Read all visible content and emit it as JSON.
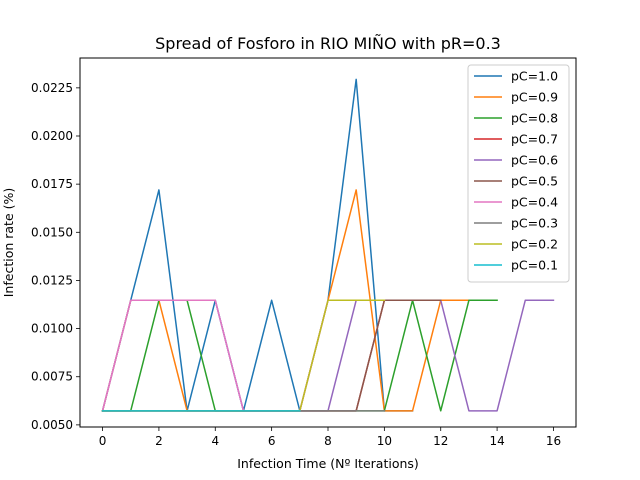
{
  "chart_data": {
    "type": "line",
    "title": "Spread of Fosforo in RIO MIÑO with pR=0.3",
    "xlabel": "Infection Time (Nº Iterations)",
    "ylabel": "Infection rate (%)",
    "xlim": [
      -0.8,
      16.8
    ],
    "ylim": [
      0.00489,
      0.02405
    ],
    "xticks": [
      0,
      2,
      4,
      6,
      8,
      10,
      12,
      14,
      16
    ],
    "xtick_labels": [
      "0",
      "2",
      "4",
      "6",
      "8",
      "10",
      "12",
      "14",
      "16"
    ],
    "yticks": [
      0.005,
      0.0075,
      0.01,
      0.0125,
      0.015,
      0.0175,
      0.02,
      0.0225
    ],
    "ytick_labels": [
      "0.0050",
      "0.0075",
      "0.0100",
      "0.0125",
      "0.0150",
      "0.0175",
      "0.0200",
      "0.0225"
    ],
    "grid": false,
    "legend_position": "top-right",
    "series": [
      {
        "name": "pC=1.0",
        "color": "#1f77b4",
        "x": [
          0,
          1,
          2,
          3,
          4,
          5,
          6,
          7,
          8,
          9,
          10,
          11
        ],
        "y": [
          0.00573,
          0.01147,
          0.0172,
          0.00573,
          0.01147,
          0.00573,
          0.01147,
          0.00573,
          0.01147,
          0.02294,
          0.00573,
          0.00573
        ]
      },
      {
        "name": "pC=0.9",
        "color": "#ff7f0e",
        "x": [
          0,
          1,
          2,
          3,
          4,
          5,
          6,
          7,
          8,
          9,
          10,
          11,
          12,
          13
        ],
        "y": [
          0.00573,
          0.01147,
          0.01147,
          0.00573,
          0.00573,
          0.00573,
          0.00573,
          0.00573,
          0.01147,
          0.0172,
          0.00573,
          0.00573,
          0.01147,
          0.01147
        ]
      },
      {
        "name": "pC=0.8",
        "color": "#2ca02c",
        "x": [
          0,
          1,
          2,
          3,
          4,
          5,
          6,
          7,
          8,
          9,
          10,
          11,
          12,
          13,
          14
        ],
        "y": [
          0.00573,
          0.00573,
          0.01147,
          0.01147,
          0.00573,
          0.00573,
          0.00573,
          0.00573,
          0.00573,
          0.00573,
          0.00573,
          0.01147,
          0.00573,
          0.01147,
          0.01147
        ]
      },
      {
        "name": "pC=0.7",
        "color": "#d62728",
        "x": [
          0,
          1,
          2,
          3,
          4,
          5,
          6,
          7,
          8,
          9,
          10,
          11,
          12
        ],
        "y": [
          0.00573,
          0.00573,
          0.00573,
          0.00573,
          0.00573,
          0.00573,
          0.00573,
          0.00573,
          0.00573,
          0.00573,
          0.01147,
          0.01147,
          0.01147
        ]
      },
      {
        "name": "pC=0.6",
        "color": "#9467bd",
        "x": [
          0,
          1,
          2,
          3,
          4,
          5,
          6,
          7,
          8,
          9,
          10,
          11,
          12,
          13,
          14,
          15,
          16
        ],
        "y": [
          0.00573,
          0.01147,
          0.01147,
          0.01147,
          0.01147,
          0.00573,
          0.00573,
          0.00573,
          0.00573,
          0.01147,
          0.01147,
          0.01147,
          0.01147,
          0.00573,
          0.00573,
          0.01147,
          0.01147
        ]
      },
      {
        "name": "pC=0.5",
        "color": "#8c564b",
        "x": [
          0,
          1,
          2,
          3,
          4,
          5,
          6,
          7,
          8,
          9,
          10,
          11,
          12
        ],
        "y": [
          0.00573,
          0.00573,
          0.00573,
          0.00573,
          0.00573,
          0.00573,
          0.00573,
          0.00573,
          0.00573,
          0.00573,
          0.01147,
          0.01147,
          0.01147
        ]
      },
      {
        "name": "pC=0.4",
        "color": "#e377c2",
        "x": [
          0,
          1,
          2,
          3,
          4,
          5,
          6,
          7,
          8,
          9,
          10
        ],
        "y": [
          0.00573,
          0.01147,
          0.01147,
          0.01147,
          0.01147,
          0.00573,
          0.00573,
          0.00573,
          0.01147,
          0.01147,
          0.01147
        ]
      },
      {
        "name": "pC=0.3",
        "color": "#7f7f7f",
        "x": [
          0,
          1,
          2,
          3,
          4,
          5,
          6,
          7,
          8,
          9,
          10
        ],
        "y": [
          0.00573,
          0.00573,
          0.00573,
          0.00573,
          0.00573,
          0.00573,
          0.00573,
          0.00573,
          0.00573,
          0.00573,
          0.00573
        ]
      },
      {
        "name": "pC=0.2",
        "color": "#bcbd22",
        "x": [
          0,
          1,
          2,
          3,
          4,
          5,
          6,
          7,
          8,
          9,
          10
        ],
        "y": [
          0.00573,
          0.00573,
          0.00573,
          0.00573,
          0.00573,
          0.00573,
          0.00573,
          0.00573,
          0.01147,
          0.01147,
          0.01147
        ]
      },
      {
        "name": "pC=0.1",
        "color": "#17becf",
        "x": [
          0,
          1,
          2,
          3,
          4,
          5,
          6,
          7
        ],
        "y": [
          0.00573,
          0.00573,
          0.00573,
          0.00573,
          0.00573,
          0.00573,
          0.00573,
          0.00573
        ]
      }
    ]
  }
}
